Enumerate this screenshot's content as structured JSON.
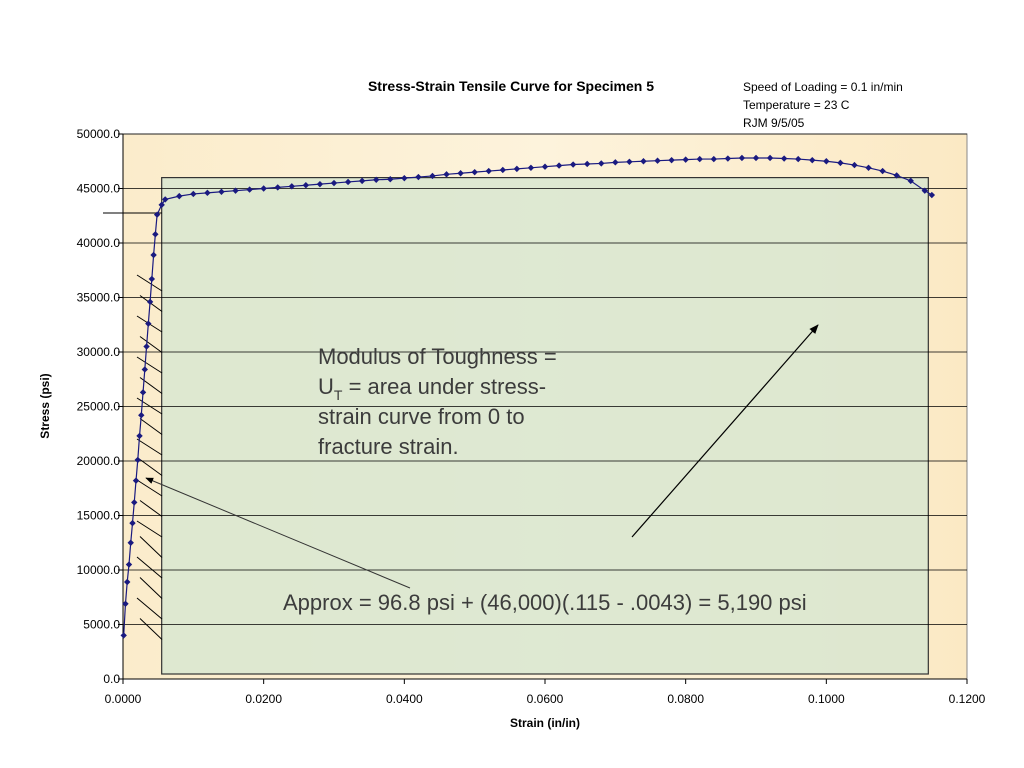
{
  "chart_data": {
    "type": "line",
    "title": "Stress-Strain Tensile Curve for Specimen 5",
    "notes": [
      "Speed of Loading = 0.1 in/min",
      "Temperature = 23 C",
      "RJM 9/5/05"
    ],
    "x_label": "Strain (in/in)",
    "y_label": "Stress (psi)",
    "color": "#1a1a80",
    "x": [
      0.0001,
      0.00035,
      0.0006,
      0.00085,
      0.0011,
      0.00135,
      0.0016,
      0.00185,
      0.0021,
      0.00235,
      0.0026,
      0.00285,
      0.0031,
      0.00335,
      0.0036,
      0.00385,
      0.0041,
      0.00435,
      0.0046,
      0.00485,
      0.0055,
      0.006,
      0.008,
      0.01,
      0.012,
      0.014,
      0.016,
      0.018,
      0.02,
      0.022,
      0.024,
      0.026,
      0.028,
      0.03,
      0.032,
      0.034,
      0.036,
      0.038,
      0.04,
      0.042,
      0.044,
      0.046,
      0.048,
      0.05,
      0.052,
      0.054,
      0.056,
      0.058,
      0.06,
      0.062,
      0.064,
      0.066,
      0.068,
      0.07,
      0.072,
      0.074,
      0.076,
      0.078,
      0.08,
      0.082,
      0.084,
      0.086,
      0.088,
      0.09,
      0.092,
      0.094,
      0.096,
      0.098,
      0.1,
      0.102,
      0.104,
      0.106,
      0.108,
      0.11,
      0.112,
      0.114,
      0.115
    ],
    "values": [
      4000,
      6900,
      8900,
      10500,
      12500,
      14300,
      16200,
      18200,
      20100,
      22300,
      24200,
      26300,
      28400,
      30500,
      32600,
      34600,
      36700,
      38900,
      40800,
      42600,
      43500,
      44000,
      44300,
      44500,
      44600,
      44700,
      44800,
      44900,
      45000,
      45100,
      45200,
      45300,
      45400,
      45500,
      45600,
      45700,
      45800,
      45850,
      45950,
      46050,
      46150,
      46300,
      46400,
      46500,
      46600,
      46700,
      46800,
      46900,
      47000,
      47100,
      47200,
      47250,
      47300,
      47400,
      47450,
      47500,
      47550,
      47600,
      47650,
      47700,
      47700,
      47750,
      47800,
      47800,
      47800,
      47750,
      47700,
      47600,
      47500,
      47350,
      47150,
      46900,
      46600,
      46200,
      45700,
      44800,
      44400
    ],
    "shaded_region": {
      "x": [
        0.0055,
        0.1145
      ],
      "y": [
        0,
        46000
      ],
      "color": "#d8e6d0"
    },
    "xlim": [
      0,
      0.12
    ],
    "ylim": [
      0,
      50000
    ],
    "xticks": [
      {
        "value": 0,
        "label": "0.0000"
      },
      {
        "value": 0.02,
        "label": "0.0200"
      },
      {
        "value": 0.04,
        "label": "0.0400"
      },
      {
        "value": 0.06,
        "label": "0.0600"
      },
      {
        "value": 0.08,
        "label": "0.0800"
      },
      {
        "value": 0.1,
        "label": "0.1000"
      },
      {
        "value": 0.12,
        "label": "0.1200"
      }
    ],
    "yticks": [
      {
        "value": 0,
        "label": "0.0"
      },
      {
        "value": 5000,
        "label": "5000.0"
      },
      {
        "value": 10000,
        "label": "10000.0"
      },
      {
        "value": 15000,
        "label": "15000.0"
      },
      {
        "value": 20000,
        "label": "20000.0"
      },
      {
        "value": 25000,
        "label": "25000.0"
      },
      {
        "value": 30000,
        "label": "30000.0"
      },
      {
        "value": 35000,
        "label": "35000.0"
      },
      {
        "value": 40000,
        "label": "40000.0"
      },
      {
        "value": 45000,
        "label": "45000.0"
      },
      {
        "value": 50000,
        "label": "50000.0"
      }
    ],
    "grid": true,
    "toughness_note": {
      "line1": "Modulus of Toughness =",
      "line2_main": "U",
      "line2_sub": "T",
      "line2_rest": " = area under stress-",
      "line3": "strain curve from 0 to",
      "line4": "fracture strain."
    },
    "approx_note": "Approx =  96.8 psi + (46,000)(.115 - .0043) = 5,190 psi"
  }
}
